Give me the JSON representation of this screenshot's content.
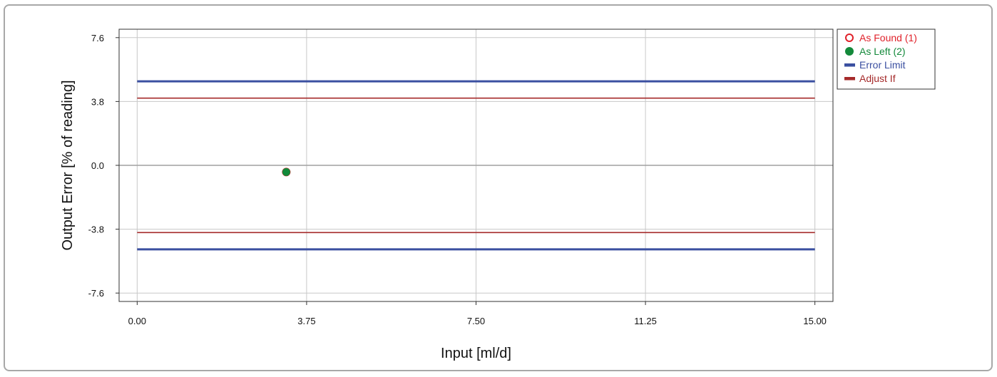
{
  "chart_data": {
    "type": "scatter",
    "xlabel": "Input [ml/d]",
    "ylabel": "Output Error [% of reading]",
    "xlim": [
      -0.4,
      15.4
    ],
    "ylim": [
      -8.1,
      8.1
    ],
    "x_ticks": [
      0,
      3.75,
      7.5,
      11.25,
      15
    ],
    "x_tick_labels": [
      "0.00",
      "3.75",
      "7.50",
      "11.25",
      "15.00"
    ],
    "y_ticks": [
      7.6,
      3.8,
      0,
      -3.8,
      -7.6
    ],
    "y_tick_labels": [
      "7.6",
      "3.8",
      "0.0",
      "-3.8",
      "-7.6"
    ],
    "grid": true,
    "legend_position": "right-top",
    "series": [
      {
        "name": "As Found (1)",
        "kind": "points",
        "marker": "hollow-circle",
        "color": "#e0212a",
        "points": [
          [
            3.3,
            -0.4
          ]
        ]
      },
      {
        "name": "As Left (2)",
        "kind": "points",
        "marker": "filled-circle",
        "color": "#13893a",
        "points": [
          [
            3.3,
            -0.4
          ]
        ]
      },
      {
        "name": "Error Limit",
        "kind": "lines",
        "color": "#3a4fa0",
        "segments": [
          [
            [
              0,
              5
            ],
            [
              15,
              5
            ]
          ],
          [
            [
              0,
              -5
            ],
            [
              15,
              -5
            ]
          ]
        ]
      },
      {
        "name": "Adjust If",
        "kind": "lines",
        "color": "#a52a2a",
        "segments": [
          [
            [
              0,
              4
            ],
            [
              15,
              4
            ]
          ],
          [
            [
              0,
              -4
            ],
            [
              15,
              -4
            ]
          ]
        ]
      }
    ]
  }
}
